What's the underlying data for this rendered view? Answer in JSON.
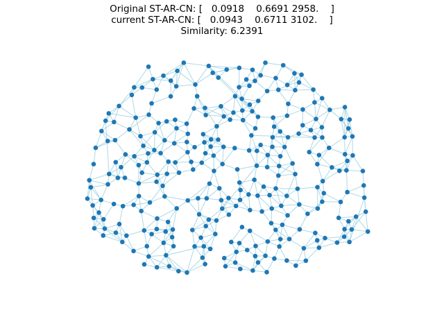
{
  "title": {
    "line1": "Original ST-AR-CN: [   0.0918    0.6691 2958.    ]",
    "line2": "current ST-AR-CN: [   0.0943    0.6711 3102.    ]",
    "line3": "Similarity: 6.2391"
  },
  "colors": {
    "node": "#1f77b4",
    "edge": "#add8e6",
    "background": "#ffffff"
  },
  "chart_data": {
    "type": "network-graph",
    "node_count": 300,
    "edge_style": "light blue thin lines",
    "node_style": "blue filled circles"
  }
}
